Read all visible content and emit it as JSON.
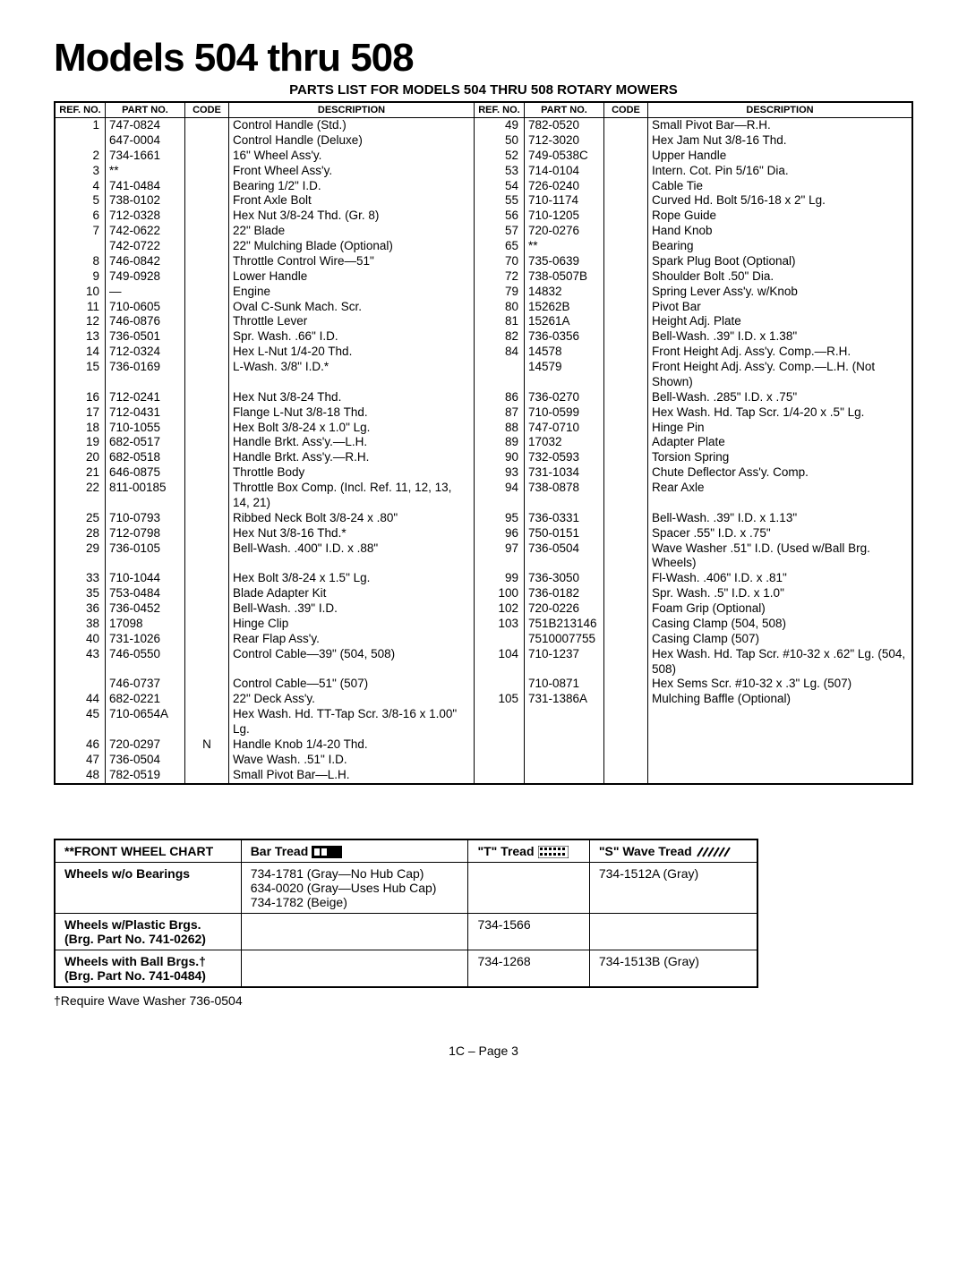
{
  "title": "Models 504 thru 508",
  "subtitle": "PARTS LIST FOR MODELS 504 THRU 508 ROTARY MOWERS",
  "headers": {
    "ref": "REF.\nNO.",
    "part": "PART\nNO.",
    "code": "CODE",
    "desc": "DESCRIPTION"
  },
  "left_rows": [
    {
      "ref": "1",
      "part": "747-0824",
      "code": "",
      "desc": "Control Handle (Std.)"
    },
    {
      "ref": "",
      "part": "647-0004",
      "code": "",
      "desc": "Control Handle (Deluxe)"
    },
    {
      "ref": "2",
      "part": "734-1661",
      "code": "",
      "desc": "16\" Wheel Ass'y."
    },
    {
      "ref": "3",
      "part": "**",
      "code": "",
      "desc": "Front Wheel Ass'y."
    },
    {
      "ref": "4",
      "part": "741-0484",
      "code": "",
      "desc": "Bearing 1/2\" I.D."
    },
    {
      "ref": "5",
      "part": "738-0102",
      "code": "",
      "desc": "Front Axle Bolt"
    },
    {
      "ref": "6",
      "part": "712-0328",
      "code": "",
      "desc": "Hex Nut 3/8-24 Thd. (Gr. 8)"
    },
    {
      "ref": "7",
      "part": "742-0622",
      "code": "",
      "desc": "22\" Blade"
    },
    {
      "ref": "",
      "part": "742-0722",
      "code": "",
      "desc": "22\" Mulching Blade (Optional)"
    },
    {
      "ref": "8",
      "part": "746-0842",
      "code": "",
      "desc": "Throttle Control Wire—51\""
    },
    {
      "ref": "9",
      "part": "749-0928",
      "code": "",
      "desc": "Lower Handle"
    },
    {
      "ref": "10",
      "part": "—",
      "code": "",
      "desc": "Engine"
    },
    {
      "ref": "11",
      "part": "710-0605",
      "code": "",
      "desc": "Oval C-Sunk Mach. Scr."
    },
    {
      "ref": "12",
      "part": "746-0876",
      "code": "",
      "desc": "Throttle Lever"
    },
    {
      "ref": "13",
      "part": "736-0501",
      "code": "",
      "desc": "Spr. Wash. .66\" I.D."
    },
    {
      "ref": "14",
      "part": "712-0324",
      "code": "",
      "desc": "Hex L-Nut 1/4-20 Thd."
    },
    {
      "ref": "15",
      "part": "736-0169",
      "code": "",
      "desc": "L-Wash. 3/8\" I.D.*"
    },
    {
      "ref": "16",
      "part": "712-0241",
      "code": "",
      "desc": "Hex Nut 3/8-24 Thd."
    },
    {
      "ref": "17",
      "part": "712-0431",
      "code": "",
      "desc": "Flange L-Nut 3/8-18 Thd."
    },
    {
      "ref": "18",
      "part": "710-1055",
      "code": "",
      "desc": "Hex Bolt 3/8-24 x 1.0\" Lg."
    },
    {
      "ref": "19",
      "part": "682-0517",
      "code": "",
      "desc": "Handle Brkt. Ass'y.—L.H."
    },
    {
      "ref": "20",
      "part": "682-0518",
      "code": "",
      "desc": "Handle Brkt. Ass'y.—R.H."
    },
    {
      "ref": "21",
      "part": "646-0875",
      "code": "",
      "desc": "Throttle Body"
    },
    {
      "ref": "22",
      "part": "811-00185",
      "code": "",
      "desc": "Throttle Box Comp. (Incl. Ref. 11, 12, 13, 14, 21)"
    },
    {
      "ref": "25",
      "part": "710-0793",
      "code": "",
      "desc": "Ribbed Neck Bolt 3/8-24 x .80\""
    },
    {
      "ref": "28",
      "part": "712-0798",
      "code": "",
      "desc": "Hex Nut 3/8-16 Thd.*"
    },
    {
      "ref": "29",
      "part": "736-0105",
      "code": "",
      "desc": "Bell-Wash. .400\" I.D. x .88\""
    },
    {
      "ref": "33",
      "part": "710-1044",
      "code": "",
      "desc": "Hex Bolt 3/8-24 x 1.5\" Lg."
    },
    {
      "ref": "35",
      "part": "753-0484",
      "code": "",
      "desc": "Blade Adapter Kit"
    },
    {
      "ref": "36",
      "part": "736-0452",
      "code": "",
      "desc": "Bell-Wash. .39\" I.D."
    },
    {
      "ref": "38",
      "part": "17098",
      "code": "",
      "desc": "Hinge Clip"
    },
    {
      "ref": "40",
      "part": "731-1026",
      "code": "",
      "desc": "Rear Flap Ass'y."
    },
    {
      "ref": "43",
      "part": "746-0550",
      "code": "",
      "desc": "Control Cable—39\" (504, 508)"
    },
    {
      "ref": "",
      "part": "746-0737",
      "code": "",
      "desc": "Control Cable—51\" (507)"
    },
    {
      "ref": "44",
      "part": "682-0221",
      "code": "",
      "desc": "22\" Deck Ass'y."
    },
    {
      "ref": "45",
      "part": "710-0654A",
      "code": "",
      "desc": "Hex Wash. Hd. TT-Tap Scr. 3/8-16 x 1.00\" Lg."
    },
    {
      "ref": "46",
      "part": "720-0297",
      "code": "N",
      "desc": "Handle Knob 1/4-20 Thd."
    },
    {
      "ref": "47",
      "part": "736-0504",
      "code": "",
      "desc": "Wave Wash. .51\" I.D."
    },
    {
      "ref": "48",
      "part": "782-0519",
      "code": "",
      "desc": "Small Pivot Bar—L.H."
    }
  ],
  "right_rows": [
    {
      "ref": "49",
      "part": "782-0520",
      "code": "",
      "desc": "Small Pivot Bar—R.H."
    },
    {
      "ref": "50",
      "part": "712-3020",
      "code": "",
      "desc": "Hex Jam Nut 3/8-16 Thd."
    },
    {
      "ref": "52",
      "part": "749-0538C",
      "code": "",
      "desc": "Upper Handle"
    },
    {
      "ref": "53",
      "part": "714-0104",
      "code": "",
      "desc": "Intern. Cot. Pin 5/16\" Dia."
    },
    {
      "ref": "54",
      "part": "726-0240",
      "code": "",
      "desc": "Cable Tie"
    },
    {
      "ref": "55",
      "part": "710-1174",
      "code": "",
      "desc": "Curved Hd. Bolt 5/16-18 x 2\" Lg."
    },
    {
      "ref": "56",
      "part": "710-1205",
      "code": "",
      "desc": "Rope Guide"
    },
    {
      "ref": "57",
      "part": "720-0276",
      "code": "",
      "desc": "Hand Knob"
    },
    {
      "ref": "65",
      "part": "**",
      "code": "",
      "desc": "Bearing"
    },
    {
      "ref": "70",
      "part": "735-0639",
      "code": "",
      "desc": "Spark Plug Boot (Optional)"
    },
    {
      "ref": "72",
      "part": "738-0507B",
      "code": "",
      "desc": "Shoulder Bolt .50\" Dia."
    },
    {
      "ref": "79",
      "part": "14832",
      "code": "",
      "desc": "Spring Lever Ass'y. w/Knob"
    },
    {
      "ref": "80",
      "part": "15262B",
      "code": "",
      "desc": "Pivot Bar"
    },
    {
      "ref": "81",
      "part": "15261A",
      "code": "",
      "desc": "Height Adj. Plate"
    },
    {
      "ref": "82",
      "part": "736-0356",
      "code": "",
      "desc": "Bell-Wash. .39\" I.D. x 1.38\""
    },
    {
      "ref": "84",
      "part": "14578",
      "code": "",
      "desc": "Front Height Adj. Ass'y. Comp.—R.H."
    },
    {
      "ref": "",
      "part": "14579",
      "code": "",
      "desc": "Front Height Adj. Ass'y. Comp.—L.H. (Not Shown)"
    },
    {
      "ref": "86",
      "part": "736-0270",
      "code": "",
      "desc": "Bell-Wash. .285\" I.D. x .75\""
    },
    {
      "ref": "87",
      "part": "710-0599",
      "code": "",
      "desc": "Hex Wash. Hd. Tap Scr. 1/4-20 x .5\" Lg."
    },
    {
      "ref": "88",
      "part": "747-0710",
      "code": "",
      "desc": "Hinge Pin"
    },
    {
      "ref": "89",
      "part": "17032",
      "code": "",
      "desc": "Adapter Plate"
    },
    {
      "ref": "90",
      "part": "732-0593",
      "code": "",
      "desc": "Torsion Spring"
    },
    {
      "ref": "93",
      "part": "731-1034",
      "code": "",
      "desc": "Chute Deflector Ass'y. Comp."
    },
    {
      "ref": "94",
      "part": "738-0878",
      "code": "",
      "desc": "Rear Axle"
    },
    {
      "ref": "95",
      "part": "736-0331",
      "code": "",
      "desc": "Bell-Wash. .39\" I.D. x 1.13\""
    },
    {
      "ref": "96",
      "part": "750-0151",
      "code": "",
      "desc": "Spacer .55\" I.D. x .75\""
    },
    {
      "ref": "97",
      "part": "736-0504",
      "code": "",
      "desc": "Wave Washer .51\" I.D. (Used w/Ball Brg. Wheels)"
    },
    {
      "ref": "99",
      "part": "736-3050",
      "code": "",
      "desc": "Fl-Wash. .406\" I.D. x .81\""
    },
    {
      "ref": "100",
      "part": "736-0182",
      "code": "",
      "desc": "Spr. Wash. .5\" I.D. x 1.0\""
    },
    {
      "ref": "102",
      "part": "720-0226",
      "code": "",
      "desc": "Foam Grip (Optional)"
    },
    {
      "ref": "103",
      "part": "751B213146",
      "code": "",
      "desc": "Casing Clamp (504, 508)"
    },
    {
      "ref": "",
      "part": "7510007755",
      "code": "",
      "desc": "Casing Clamp (507)"
    },
    {
      "ref": "104",
      "part": "710-1237",
      "code": "",
      "desc": "Hex Wash. Hd. Tap Scr. #10-32 x .62\" Lg. (504, 508)"
    },
    {
      "ref": "",
      "part": "710-0871",
      "code": "",
      "desc": "Hex Sems Scr. #10-32 x .3\" Lg. (507)"
    },
    {
      "ref": "105",
      "part": "731-1386A",
      "code": "",
      "desc": "Mulching Baffle (Optional)"
    }
  ],
  "wheel_chart": {
    "header": [
      "**FRONT WHEEL CHART",
      "Bar Tread",
      "\"T\" Tread",
      "\"S\" Wave Tread"
    ],
    "rows": [
      {
        "label": "Wheels w/o Bearings",
        "bar": "734-1781 (Gray—No Hub Cap)\n634-0020 (Gray—Uses Hub Cap)\n734-1782 (Beige)",
        "t": "",
        "s": "734-1512A (Gray)"
      },
      {
        "label": "Wheels w/Plastic Brgs.\n(Brg. Part No. 741-0262)",
        "bar": "",
        "t": "734-1566",
        "s": ""
      },
      {
        "label": "Wheels with Ball Brgs.†\n(Brg. Part No. 741-0484)",
        "bar": "",
        "t": "734-1268",
        "s": "734-1513B (Gray)"
      }
    ]
  },
  "footnote": "†Require Wave Washer 736-0504",
  "pagenum": "1C – Page 3"
}
